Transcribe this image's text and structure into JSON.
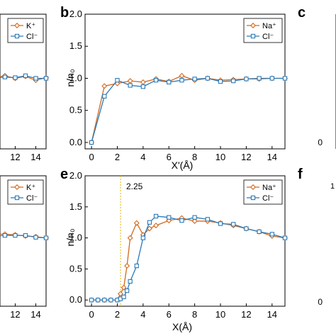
{
  "colors": {
    "orange": "#d2691e",
    "blue": "#2a7ab8",
    "vline": "#e0b400",
    "axis": "#000000"
  },
  "panels": {
    "a": {
      "letter": "",
      "legend": [
        "K⁺",
        "Cl⁻"
      ],
      "x_ticks_visible": [
        "12",
        "14"
      ]
    },
    "b": {
      "letter": "b",
      "legend": [
        "Na⁺",
        "Cl⁻"
      ],
      "ylabel": "n/n₀",
      "xlabel": "X'(Å)"
    },
    "c": {
      "letter": "c",
      "y_ticks_visible": [
        "0"
      ]
    },
    "d": {
      "letter": "",
      "legend": [
        "K⁺",
        "Cl⁻"
      ],
      "x_ticks_visible": [
        "12",
        "14"
      ]
    },
    "e": {
      "letter": "e",
      "legend": [
        "Na⁺",
        "Cl⁻"
      ],
      "ylabel": "n/n₀",
      "xlabel": "X(Å)",
      "annotation": "2.25"
    },
    "f": {
      "letter": "f",
      "y_ticks_visible": [
        "0"
      ],
      "partial_text": "1"
    }
  },
  "chart_data": [
    {
      "panel": "b",
      "type": "line",
      "xlabel": "X'(Å)",
      "ylabel": "n/n₀",
      "xlim": [
        -0.5,
        15
      ],
      "ylim": [
        -0.1,
        2.0
      ],
      "xticks": [
        0,
        2,
        4,
        6,
        8,
        10,
        12,
        14
      ],
      "yticks": [
        0.0,
        0.5,
        1.0,
        1.5,
        2.0
      ],
      "legend": "top-right",
      "series": [
        {
          "name": "Na⁺",
          "color": "#d2691e",
          "marker": "diamond",
          "x": [
            0,
            1,
            2,
            3,
            4,
            5,
            6,
            7,
            8,
            9,
            10,
            11,
            12,
            13,
            14,
            15
          ],
          "y": [
            0.0,
            0.88,
            0.92,
            0.96,
            0.94,
            0.99,
            0.95,
            1.04,
            0.97,
            1.0,
            0.97,
            0.98,
            0.99,
            0.99,
            1.0,
            1.0
          ]
        },
        {
          "name": "Cl⁻",
          "color": "#2a7ab8",
          "marker": "square",
          "x": [
            0,
            1,
            2,
            3,
            4,
            5,
            6,
            7,
            8,
            9,
            10,
            11,
            12,
            13,
            14,
            15
          ],
          "y": [
            0.0,
            0.72,
            0.97,
            0.89,
            0.87,
            0.97,
            0.94,
            0.97,
            0.99,
            1.0,
            0.95,
            0.96,
            0.99,
            1.0,
            1.0,
            1.0
          ]
        }
      ]
    },
    {
      "panel": "e",
      "type": "line",
      "xlabel": "X(Å)",
      "ylabel": "n/n₀",
      "xlim": [
        -0.5,
        15
      ],
      "ylim": [
        -0.1,
        2.0
      ],
      "xticks": [
        0,
        2,
        4,
        6,
        8,
        10,
        12,
        14
      ],
      "yticks": [
        0.0,
        0.5,
        1.0,
        1.5,
        2.0
      ],
      "legend": "top-right",
      "vline": 2.25,
      "series": [
        {
          "name": "Na⁺",
          "color": "#d2691e",
          "marker": "diamond",
          "x": [
            0,
            0.5,
            1,
            1.5,
            2,
            2.25,
            2.5,
            2.75,
            3,
            3.5,
            4,
            4.5,
            5,
            6,
            7,
            8,
            9,
            10,
            11,
            12,
            13,
            14,
            15
          ],
          "y": [
            0.0,
            0.0,
            0.0,
            0.0,
            0.0,
            0.1,
            0.2,
            0.55,
            1.0,
            1.24,
            1.05,
            1.15,
            1.2,
            1.28,
            1.32,
            1.27,
            1.27,
            1.24,
            1.2,
            1.15,
            1.1,
            1.03,
            1.0
          ]
        },
        {
          "name": "Cl⁻",
          "color": "#2a7ab8",
          "marker": "square",
          "x": [
            0,
            0.5,
            1,
            1.5,
            2,
            2.25,
            2.5,
            2.75,
            3,
            3.5,
            4,
            4.5,
            5,
            6,
            7,
            8,
            9,
            10,
            11,
            12,
            13,
            14,
            15
          ],
          "y": [
            0.0,
            0.0,
            0.0,
            0.0,
            0.0,
            0.02,
            0.05,
            0.15,
            0.3,
            0.55,
            1.0,
            1.25,
            1.35,
            1.33,
            1.28,
            1.33,
            1.3,
            1.23,
            1.22,
            1.15,
            1.1,
            1.06,
            1.0
          ]
        }
      ]
    },
    {
      "panel": "a",
      "type": "line",
      "xlim": [
        -0.5,
        15
      ],
      "ylim": [
        -0.1,
        2.0
      ],
      "xticks": [
        12,
        14
      ],
      "legend": "top-right",
      "series": [
        {
          "name": "K⁺",
          "color": "#d2691e",
          "marker": "diamond",
          "x": [
            9,
            10,
            11,
            12,
            13,
            14,
            15
          ],
          "y": [
            1.0,
            1.01,
            1.04,
            1.0,
            1.03,
            0.97,
            1.01
          ]
        },
        {
          "name": "Cl⁻",
          "color": "#2a7ab8",
          "marker": "square",
          "x": [
            9,
            10,
            11,
            12,
            13,
            14,
            15
          ],
          "y": [
            0.99,
            1.0,
            1.02,
            1.01,
            1.04,
            1.0,
            1.0
          ]
        }
      ]
    },
    {
      "panel": "d",
      "type": "line",
      "xlim": [
        -0.5,
        15
      ],
      "ylim": [
        -0.1,
        2.0
      ],
      "xticks": [
        12,
        14
      ],
      "legend": "top-right",
      "series": [
        {
          "name": "K⁺",
          "color": "#d2691e",
          "marker": "diamond",
          "x": [
            9,
            10,
            11,
            12,
            13,
            14,
            15
          ],
          "y": [
            1.05,
            1.06,
            1.06,
            1.05,
            1.03,
            1.02,
            1.0
          ]
        },
        {
          "name": "Cl⁻",
          "color": "#2a7ab8",
          "marker": "square",
          "x": [
            9,
            10,
            11,
            12,
            13,
            14,
            15
          ],
          "y": [
            1.02,
            1.03,
            1.04,
            1.04,
            1.04,
            1.01,
            1.0
          ]
        }
      ]
    }
  ]
}
